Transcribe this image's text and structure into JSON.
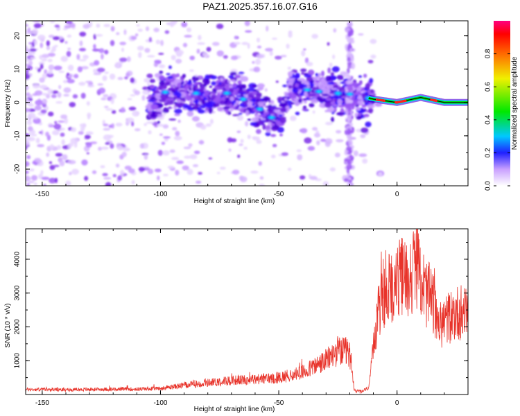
{
  "title": "PAZ1.2025.357.16.07.G16",
  "chart_data": [
    {
      "type": "heatmap",
      "title": "PAZ1.2025.357.16.07.G16",
      "xlabel": "Height of straight line (km)",
      "ylabel": "Frequency (Hz)",
      "xlim": [
        -157,
        30
      ],
      "ylim": [
        -25,
        24.5
      ],
      "xticks": [
        -150,
        -100,
        -50,
        0
      ],
      "yticks": [
        -20,
        -10,
        0,
        10,
        20
      ],
      "colorbar": {
        "label": "Normalized spectral amplitude",
        "range": [
          0,
          1
        ],
        "ticks": [
          0.0,
          0.2,
          0.4,
          0.6,
          0.8
        ],
        "tick_labels": [
          "0.0",
          "0.2",
          "0.4",
          "0.6",
          "0.8"
        ]
      },
      "ridge": [
        {
          "x": -100,
          "y": 3
        },
        {
          "x": -90,
          "y": 3.5
        },
        {
          "x": -80,
          "y": 2
        },
        {
          "x": -70,
          "y": 3
        },
        {
          "x": -60,
          "y": -1
        },
        {
          "x": -50,
          "y": -6
        },
        {
          "x": -45,
          "y": 5
        },
        {
          "x": -40,
          "y": 4
        },
        {
          "x": -30,
          "y": 3
        },
        {
          "x": -20,
          "y": 2.5
        },
        {
          "x": -10,
          "y": 1
        },
        {
          "x": 0,
          "y": 0
        },
        {
          "x": 10,
          "y": 1.5
        },
        {
          "x": 20,
          "y": 0
        },
        {
          "x": 30,
          "y": 0
        }
      ]
    },
    {
      "type": "line",
      "xlabel": "Height of straight line (km)",
      "ylabel": "SNR (10 * v/v)",
      "xlim": [
        -157,
        30
      ],
      "ylim": [
        0,
        4900
      ],
      "xticks": [
        -150,
        -100,
        -50,
        0
      ],
      "yticks": [
        1000,
        2000,
        3000,
        4000
      ],
      "series": [
        {
          "name": "SNR",
          "color": "#e8332a",
          "x": [
            -157,
            -150,
            -140,
            -130,
            -120,
            -110,
            -100,
            -90,
            -80,
            -70,
            -60,
            -50,
            -40,
            -30,
            -25,
            -20,
            -18,
            -15,
            -12,
            -10,
            -8,
            -5,
            -2,
            0,
            2,
            5,
            8,
            10,
            12,
            15,
            18,
            20,
            25,
            30
          ],
          "y": [
            150,
            150,
            140,
            150,
            160,
            160,
            180,
            270,
            350,
            420,
            450,
            500,
            650,
            1000,
            1300,
            1200,
            100,
            80,
            200,
            1300,
            2500,
            3000,
            3200,
            3300,
            3500,
            3400,
            3900,
            3500,
            3000,
            2800,
            2000,
            2200,
            2400,
            2550
          ]
        }
      ]
    }
  ]
}
